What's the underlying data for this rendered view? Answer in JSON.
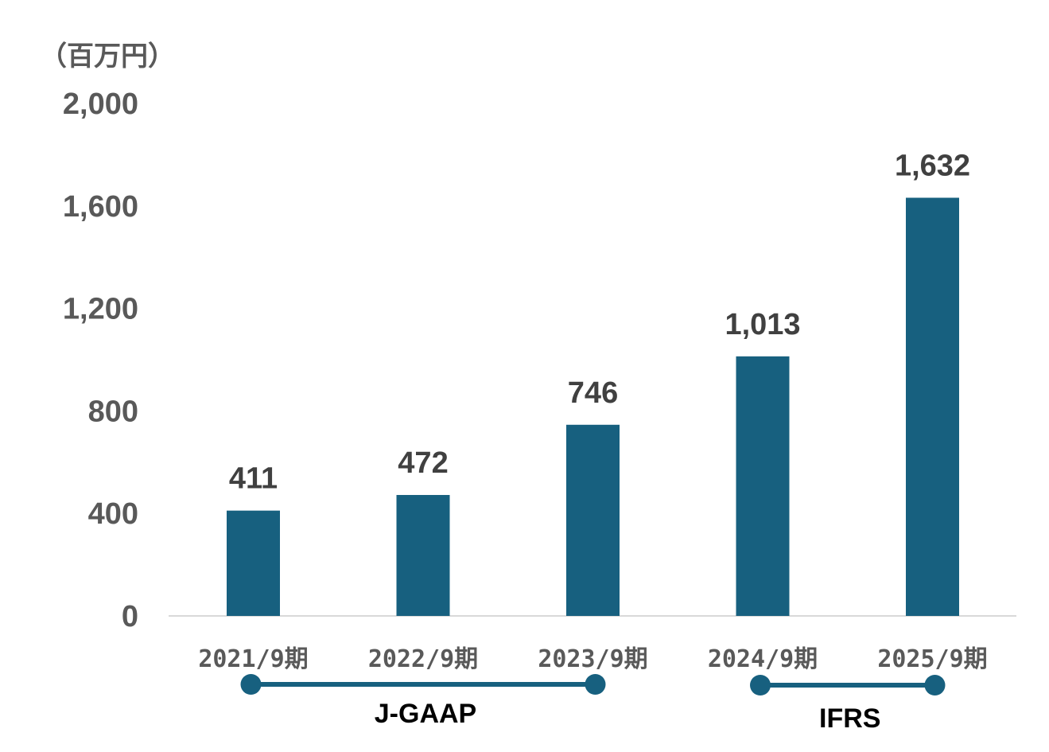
{
  "chart_data": {
    "type": "bar",
    "unit_label": "（百万円）",
    "categories": [
      "2021/9期",
      "2022/9期",
      "2023/9期",
      "2024/9期",
      "2025/9期"
    ],
    "values": [
      411,
      472,
      746,
      1013,
      1632
    ],
    "value_labels": [
      "411",
      "472",
      "746",
      "1,013",
      "1,632"
    ],
    "ylim": [
      0,
      2000
    ],
    "yticks": [
      0,
      400,
      800,
      1200,
      1600,
      2000
    ],
    "ytick_labels": [
      "0",
      "400",
      "800",
      "1,200",
      "1,600",
      "2,000"
    ],
    "grid": false,
    "legend": "none",
    "xlabel": "",
    "ylabel": "",
    "accounting_groups": [
      {
        "label": "J-GAAP",
        "from_category": 0,
        "to_category": 2
      },
      {
        "label": "IFRS",
        "from_category": 3,
        "to_category": 4
      }
    ]
  },
  "colors": {
    "bar": "#17607f",
    "group_line": "#17607f",
    "axis": "#d9d9d9"
  }
}
